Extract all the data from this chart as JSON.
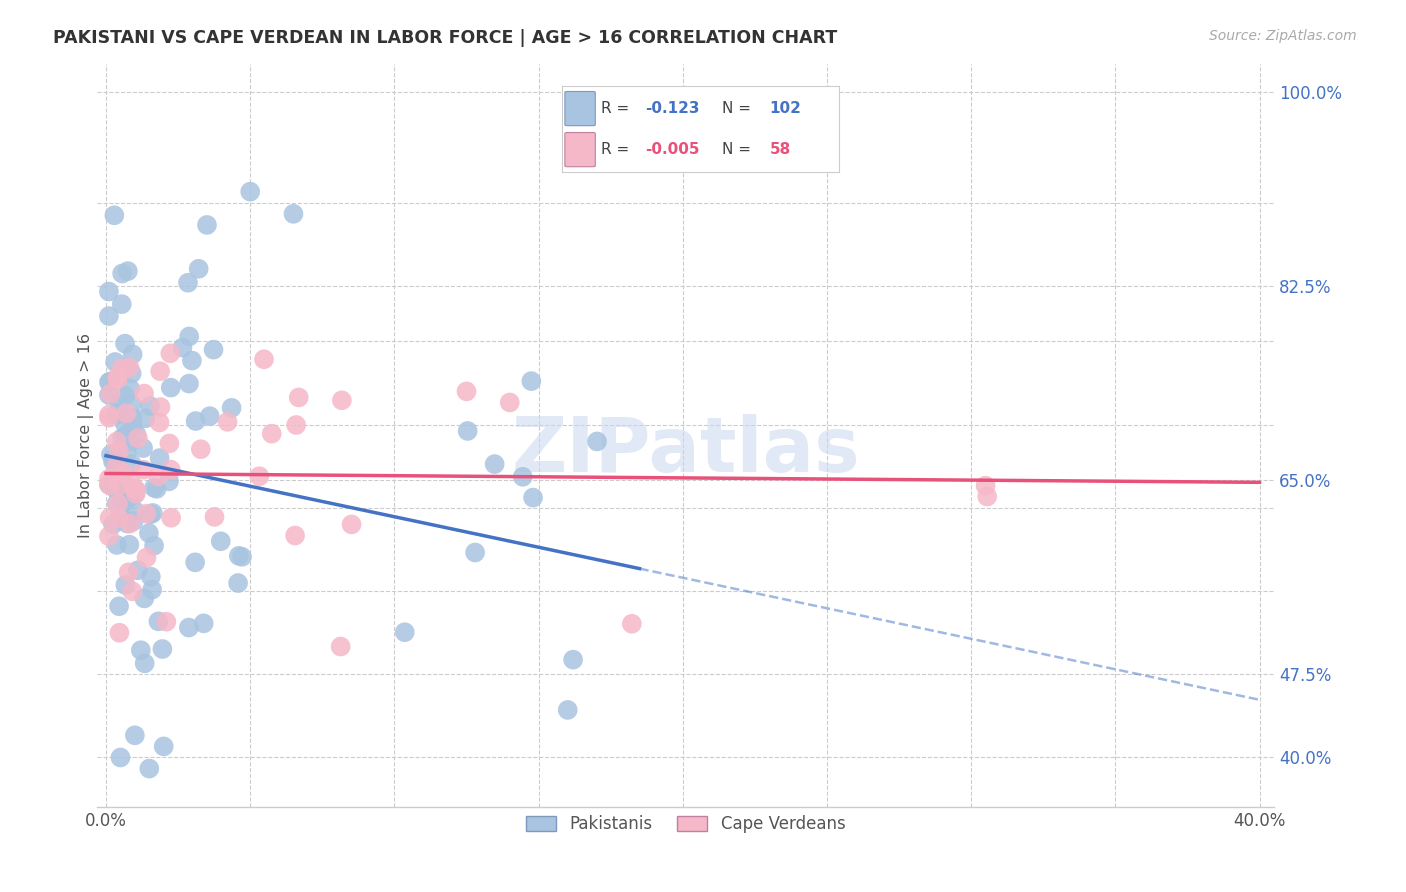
{
  "title": "PAKISTANI VS CAPE VERDEAN IN LABOR FORCE | AGE > 16 CORRELATION CHART",
  "source": "Source: ZipAtlas.com",
  "ylabel": "In Labor Force | Age > 16",
  "xlim": [
    -0.003,
    0.405
  ],
  "ylim": [
    0.355,
    1.025
  ],
  "grid_color": "#cccccc",
  "background_color": "#ffffff",
  "pakistani_color": "#a8c4e0",
  "cape_verdean_color": "#f5b8c8",
  "pakistani_line_color": "#4472c4",
  "cape_verdean_line_color": "#e8517a",
  "legend_label_1": "Pakistanis",
  "legend_label_2": "Cape Verdeans",
  "R1": "-0.123",
  "N1": "102",
  "R2": "-0.005",
  "N2": "58",
  "watermark": "ZIPatlas",
  "ytick_pos": [
    0.4,
    0.475,
    0.65,
    0.825,
    1.0
  ],
  "ytick_labels": [
    "40.0%",
    "47.5%",
    "65.0%",
    "82.5%",
    "100.0%"
  ],
  "xtick_pos": [
    0.0,
    0.4
  ],
  "xtick_labels": [
    "0.0%",
    "40.0%"
  ],
  "grid_y": [
    0.4,
    0.475,
    0.55,
    0.625,
    0.65,
    0.7,
    0.775,
    0.825,
    0.9,
    1.0
  ],
  "grid_x": [
    0.0,
    0.05,
    0.1,
    0.15,
    0.2,
    0.25,
    0.3,
    0.35,
    0.4
  ]
}
